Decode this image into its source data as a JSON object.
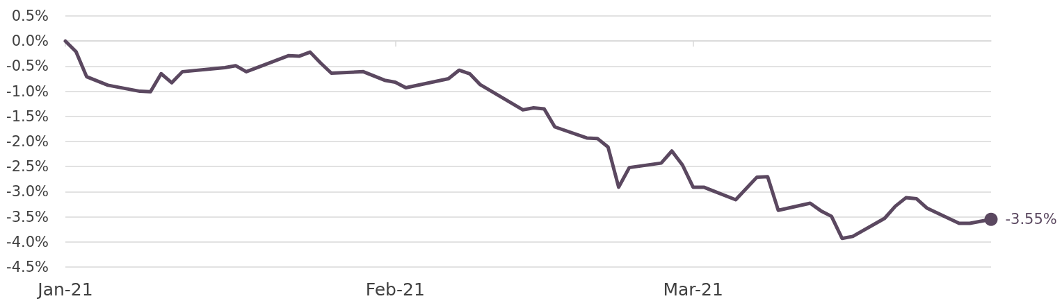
{
  "chart_data": {
    "type": "line",
    "x": [
      "2021-01-01",
      "2021-01-02",
      "2021-01-03",
      "2021-01-05",
      "2021-01-08",
      "2021-01-09",
      "2021-01-10",
      "2021-01-11",
      "2021-01-12",
      "2021-01-16",
      "2021-01-17",
      "2021-01-18",
      "2021-01-19",
      "2021-01-22",
      "2021-01-23",
      "2021-01-24",
      "2021-01-25",
      "2021-01-26",
      "2021-01-29",
      "2021-01-31",
      "2021-02-01",
      "2021-02-02",
      "2021-02-06",
      "2021-02-07",
      "2021-02-08",
      "2021-02-09",
      "2021-02-13",
      "2021-02-14",
      "2021-02-15",
      "2021-02-16",
      "2021-02-19",
      "2021-02-20",
      "2021-02-21",
      "2021-02-22",
      "2021-02-23",
      "2021-02-26",
      "2021-02-27",
      "2021-02-28",
      "2021-03-01",
      "2021-03-02",
      "2021-03-05",
      "2021-03-07",
      "2021-03-08",
      "2021-03-09",
      "2021-03-12",
      "2021-03-13",
      "2021-03-14",
      "2021-03-15",
      "2021-03-16",
      "2021-03-19",
      "2021-03-20",
      "2021-03-21",
      "2021-03-22",
      "2021-03-23",
      "2021-03-26",
      "2021-03-27",
      "2021-03-29"
    ],
    "series": [
      {
        "color": "#5b4860",
        "values": [
          0.0,
          -0.21,
          -0.71,
          -0.88,
          -1.0,
          -1.01,
          -0.65,
          -0.83,
          -0.61,
          -0.53,
          -0.49,
          -0.61,
          -0.53,
          -0.29,
          -0.3,
          -0.22,
          -0.44,
          -0.64,
          -0.61,
          -0.78,
          -0.82,
          -0.93,
          -0.75,
          -0.58,
          -0.65,
          -0.87,
          -1.37,
          -1.33,
          -1.35,
          -1.71,
          -1.93,
          -1.94,
          -2.11,
          -2.91,
          -2.52,
          -2.43,
          -2.19,
          -2.47,
          -2.91,
          -2.91,
          -3.16,
          -2.71,
          -2.7,
          -3.37,
          -3.23,
          -3.38,
          -3.49,
          -3.93,
          -3.89,
          -3.53,
          -3.29,
          -3.12,
          -3.14,
          -3.33,
          -3.63,
          -3.63,
          -3.55
        ]
      },
      {
        "type": "scatter",
        "color": "#5b4860",
        "marker": "circle",
        "x": [
          "2021-03-29"
        ],
        "values": [
          -3.55
        ],
        "value_labels": [
          "-3.55%"
        ]
      }
    ],
    "xlim": [
      "2021-01-01",
      "2021-03-29"
    ],
    "xticks": [
      {
        "value": "2021-01-01",
        "label": "Jan-21"
      },
      {
        "value": "2021-02-01",
        "label": "Feb-21"
      },
      {
        "value": "2021-03-01",
        "label": "Mar-21"
      }
    ],
    "ylim": [
      -4.5,
      0.5
    ],
    "yticks": [
      {
        "value": 0.5,
        "label": "0.5%"
      },
      {
        "value": 0,
        "label": "0.0%"
      },
      {
        "value": -0.5,
        "label": "-0.5%"
      },
      {
        "value": -1,
        "label": "-1.0%"
      },
      {
        "value": -1.5,
        "label": "-1.5%"
      },
      {
        "value": -2,
        "label": "-2.0%"
      },
      {
        "value": -2.5,
        "label": "-2.5%"
      },
      {
        "value": -3,
        "label": "-3.0%"
      },
      {
        "value": -3.5,
        "label": "-3.5%"
      },
      {
        "value": -4,
        "label": "-4.0%"
      },
      {
        "value": -4.5,
        "label": "-4.5%"
      }
    ],
    "grid": "y",
    "marker": "none"
  }
}
